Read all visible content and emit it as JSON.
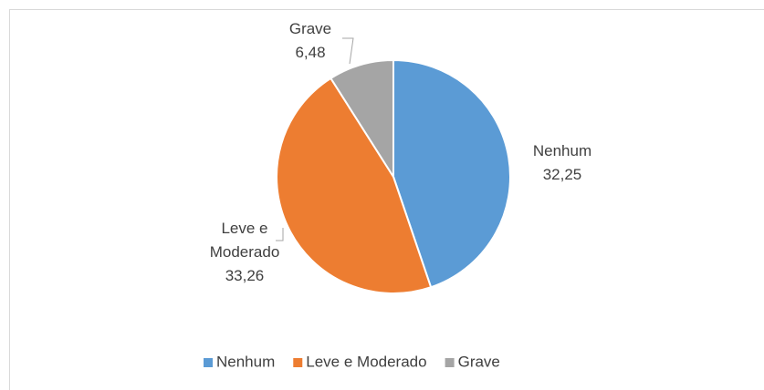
{
  "chart_data": {
    "type": "pie",
    "categories": [
      "Nenhum",
      "Leve e Moderado",
      "Grave"
    ],
    "values": [
      32.25,
      33.26,
      6.48
    ],
    "value_labels": [
      "32,25",
      "33,26",
      "6,48"
    ],
    "colors": [
      "#5b9bd5",
      "#ed7d31",
      "#a5a5a5"
    ],
    "legend": "bottom"
  }
}
